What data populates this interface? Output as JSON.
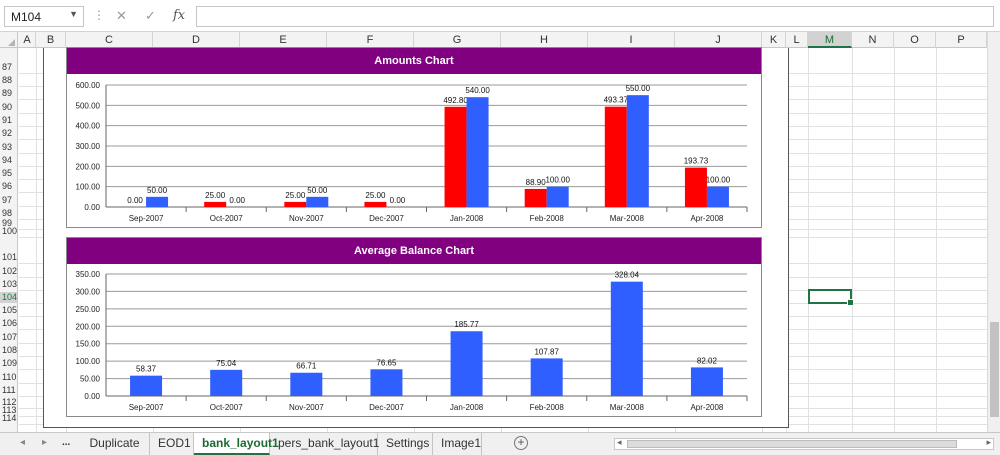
{
  "formula_bar": {
    "name_box": "M104",
    "cancel_icon": "✕",
    "enter_icon": "✓",
    "fx_label": "fx",
    "formula_value": ""
  },
  "columns": [
    "A",
    "B",
    "C",
    "D",
    "E",
    "F",
    "G",
    "H",
    "I",
    "J",
    "K",
    "L",
    "M",
    "N",
    "O",
    "P"
  ],
  "selected_column": "M",
  "rows": [
    "87",
    "88",
    "89",
    "90",
    "91",
    "92",
    "93",
    "94",
    "95",
    "96",
    "97",
    "98",
    "99",
    "100",
    "101",
    "102",
    "103",
    "104",
    "105",
    "106",
    "107",
    "108",
    "109",
    "110",
    "111",
    "112",
    "113",
    "114"
  ],
  "selected_row": "104",
  "sheet_tabs": [
    "Duplicate",
    "EOD1",
    "bank_layout1",
    "pers_bank_layout1",
    "Settings",
    "Image1"
  ],
  "active_tab": "bank_layout1",
  "tab_nav": {
    "prev": "◂",
    "next": "▸",
    "more": "..."
  },
  "add_sheet_label": "+",
  "colors": {
    "purple": "#800080",
    "red": "#ff0000",
    "blue": "#2f5fff",
    "excel_green": "#217346"
  },
  "chart_data": [
    {
      "type": "bar",
      "title": "Amounts Chart",
      "categories": [
        "Sep-2007",
        "Oct-2007",
        "Nov-2007",
        "Dec-2007",
        "Jan-2008",
        "Feb-2008",
        "Mar-2008",
        "Apr-2008"
      ],
      "series": [
        {
          "color": "#ff0000",
          "values": [
            0.0,
            25.0,
            25.0,
            25.0,
            492.8,
            88.9,
            493.37,
            193.73
          ],
          "labels": [
            "0.00",
            "25.00",
            "25.00",
            "25.00",
            "492.80",
            "88.90",
            "493.37",
            "193.73"
          ]
        },
        {
          "color": "#2f5fff",
          "values": [
            50.0,
            0.0,
            50.0,
            0.0,
            540.0,
            100.0,
            550.0,
            100.0
          ],
          "labels": [
            "50.00",
            "0.00",
            "50.00",
            "0.00",
            "540.00",
            "100.00",
            "550.00",
            "100.00"
          ]
        }
      ],
      "ylim": [
        0,
        600
      ],
      "yticks": [
        "0.00",
        "100.00",
        "200.00",
        "300.00",
        "400.00",
        "500.00",
        "600.00"
      ],
      "grid": true
    },
    {
      "type": "bar",
      "title": "Average Balance Chart",
      "categories": [
        "Sep-2007",
        "Oct-2007",
        "Nov-2007",
        "Dec-2007",
        "Jan-2008",
        "Feb-2008",
        "Mar-2008",
        "Apr-2008"
      ],
      "series": [
        {
          "color": "#2f5fff",
          "values": [
            58.37,
            75.04,
            66.71,
            76.65,
            185.77,
            107.87,
            328.04,
            82.02
          ],
          "labels": [
            "58.37",
            "75.04",
            "66.71",
            "76.65",
            "185.77",
            "107.87",
            "328.04",
            "82.02"
          ]
        }
      ],
      "ylim": [
        0,
        350
      ],
      "yticks": [
        "0.00",
        "50.00",
        "100.00",
        "150.00",
        "200.00",
        "250.00",
        "300.00",
        "350.00"
      ],
      "grid": true
    }
  ]
}
